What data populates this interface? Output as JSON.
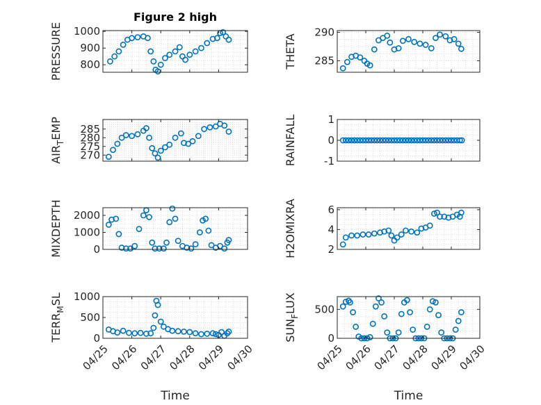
{
  "figure_title": "Figure 2 high",
  "style": {
    "marker_color": "#0072BD",
    "axis_color": "#262626",
    "grid_color": "#d9d9d9"
  },
  "x_axis": {
    "label": "Time",
    "range": [
      25.0,
      30.0
    ],
    "ticks": [
      {
        "v": 25,
        "label": "04/25"
      },
      {
        "v": 26,
        "label": "04/26"
      },
      {
        "v": 27,
        "label": "04/27"
      },
      {
        "v": 28,
        "label": "04/28"
      },
      {
        "v": 29,
        "label": "04/29"
      },
      {
        "v": 30,
        "label": "04/30"
      }
    ]
  },
  "chart_data": [
    {
      "id": "pressure",
      "type": "scatter",
      "column": "left",
      "row": 0,
      "title": "Figure 2 high",
      "ylabel": "PRESSURE",
      "ylim": [
        755,
        1005
      ],
      "grid": true,
      "yticks": [
        {
          "v": 800,
          "label": "800"
        },
        {
          "v": 900,
          "label": "900"
        },
        {
          "v": 1000,
          "label": "1000"
        }
      ],
      "x": [
        25.25,
        25.4,
        25.55,
        25.7,
        25.85,
        26.0,
        26.2,
        26.4,
        26.55,
        26.65,
        26.75,
        26.82,
        26.9,
        27.0,
        27.15,
        27.3,
        27.5,
        27.65,
        27.75,
        27.85,
        28.0,
        28.2,
        28.4,
        28.6,
        28.8,
        28.95,
        29.05,
        29.15,
        29.25,
        29.35
      ],
      "y": [
        820,
        850,
        880,
        920,
        950,
        960,
        965,
        970,
        960,
        880,
        820,
        770,
        760,
        800,
        840,
        860,
        880,
        905,
        850,
        830,
        860,
        880,
        900,
        930,
        955,
        960,
        990,
        995,
        970,
        950
      ]
    },
    {
      "id": "theta",
      "type": "scatter",
      "column": "right",
      "row": 0,
      "ylabel": "THETA",
      "ylim": [
        283.0,
        290.3
      ],
      "grid": true,
      "yticks": [
        {
          "v": 285,
          "label": "285"
        },
        {
          "v": 290,
          "label": "290"
        }
      ],
      "x": [
        25.2,
        25.35,
        25.5,
        25.65,
        25.8,
        25.95,
        26.05,
        26.15,
        26.3,
        26.45,
        26.6,
        26.75,
        26.85,
        27.0,
        27.15,
        27.3,
        27.5,
        27.7,
        27.9,
        28.1,
        28.3,
        28.45,
        28.6,
        28.8,
        28.95,
        29.1,
        29.25,
        29.35
      ],
      "y": [
        283.7,
        284.8,
        285.7,
        285.9,
        285.6,
        285.0,
        284.5,
        284.2,
        287.0,
        288.6,
        289.0,
        289.4,
        288.2,
        287.0,
        287.2,
        288.5,
        288.8,
        288.3,
        288.0,
        287.8,
        287.2,
        289.0,
        289.6,
        289.3,
        288.6,
        288.8,
        288.0,
        287.1
      ]
    },
    {
      "id": "air_temp",
      "type": "scatter",
      "column": "left",
      "row": 1,
      "ylabel": "AIR_TEMP",
      "ylim": [
        266.5,
        290.5
      ],
      "grid": true,
      "yticks": [
        {
          "v": 270,
          "label": "270"
        },
        {
          "v": 275,
          "label": "275"
        },
        {
          "v": 280,
          "label": "280"
        },
        {
          "v": 285,
          "label": "285"
        }
      ],
      "x": [
        25.2,
        25.35,
        25.5,
        25.65,
        25.8,
        26.0,
        26.2,
        26.4,
        26.5,
        26.6,
        26.7,
        26.8,
        26.9,
        27.0,
        27.15,
        27.3,
        27.5,
        27.7,
        27.8,
        27.95,
        28.1,
        28.3,
        28.5,
        28.7,
        28.9,
        29.05,
        29.2,
        29.35
      ],
      "y": [
        269.0,
        273.0,
        276.5,
        280.0,
        281.5,
        281.0,
        282.0,
        284.0,
        285.5,
        280.0,
        274.0,
        271.0,
        268.5,
        272.5,
        274.5,
        276.0,
        280.0,
        282.5,
        277.0,
        276.5,
        278.0,
        281.0,
        285.0,
        286.0,
        286.5,
        288.0,
        287.0,
        283.5
      ]
    },
    {
      "id": "rainfall",
      "type": "scatter",
      "column": "right",
      "row": 1,
      "ylabel": "RAINFALL",
      "ylim": [
        -1,
        1
      ],
      "grid": true,
      "yticks": [
        {
          "v": -1,
          "label": "-1"
        },
        {
          "v": 0,
          "label": "0"
        },
        {
          "v": 1,
          "label": "1"
        }
      ],
      "x": [
        25.2,
        25.3,
        25.4,
        25.5,
        25.6,
        25.7,
        25.8,
        25.9,
        26.0,
        26.1,
        26.2,
        26.3,
        26.4,
        26.5,
        26.6,
        26.7,
        26.8,
        26.9,
        27.0,
        27.1,
        27.2,
        27.3,
        27.4,
        27.5,
        27.6,
        27.7,
        27.8,
        27.9,
        28.0,
        28.1,
        28.2,
        28.3,
        28.4,
        28.5,
        28.6,
        28.7,
        28.8,
        28.9,
        29.0,
        29.1,
        29.2,
        29.3,
        29.37
      ],
      "y": [
        0,
        0,
        0,
        0,
        0,
        0,
        0,
        0,
        0,
        0,
        0,
        0,
        0,
        0,
        0,
        0,
        0,
        0,
        0,
        0,
        0,
        0,
        0,
        0,
        0,
        0,
        0,
        0,
        0,
        0,
        0,
        0,
        0,
        0,
        0,
        0,
        0,
        0,
        0,
        0,
        0,
        0,
        0
      ]
    },
    {
      "id": "mixdepth",
      "type": "scatter",
      "column": "left",
      "row": 2,
      "ylabel": "MIXDEPTH",
      "ylim": [
        0,
        2450
      ],
      "grid": true,
      "yticks": [
        {
          "v": 0,
          "label": "0"
        },
        {
          "v": 1000,
          "label": "1000"
        },
        {
          "v": 2000,
          "label": "2000"
        }
      ],
      "x": [
        25.2,
        25.3,
        25.45,
        25.55,
        25.65,
        25.8,
        25.95,
        26.1,
        26.25,
        26.4,
        26.5,
        26.6,
        26.7,
        26.8,
        26.95,
        27.1,
        27.2,
        27.3,
        27.4,
        27.5,
        27.6,
        27.75,
        27.9,
        28.05,
        28.2,
        28.35,
        28.45,
        28.55,
        28.65,
        28.75,
        28.9,
        29.05,
        29.2,
        29.3,
        29.35
      ],
      "y": [
        1450,
        1750,
        1800,
        900,
        100,
        50,
        50,
        200,
        1200,
        2000,
        2300,
        1900,
        400,
        50,
        50,
        50,
        400,
        1600,
        2400,
        1800,
        500,
        200,
        100,
        50,
        300,
        1000,
        1700,
        1800,
        1100,
        250,
        100,
        200,
        50,
        400,
        550
      ]
    },
    {
      "id": "h2omixra",
      "type": "scatter",
      "column": "right",
      "row": 2,
      "ylabel": "H2OMIXRA",
      "ylim": [
        2,
        6.2
      ],
      "grid": true,
      "yticks": [
        {
          "v": 2,
          "label": "2"
        },
        {
          "v": 4,
          "label": "4"
        },
        {
          "v": 6,
          "label": "6"
        }
      ],
      "x": [
        25.2,
        25.3,
        25.5,
        25.7,
        25.9,
        26.1,
        26.3,
        26.5,
        26.65,
        26.8,
        26.9,
        27.0,
        27.1,
        27.25,
        27.4,
        27.6,
        27.8,
        27.95,
        28.1,
        28.25,
        28.4,
        28.5,
        28.6,
        28.75,
        28.9,
        29.05,
        29.2,
        29.3,
        29.35
      ],
      "y": [
        2.5,
        3.2,
        3.4,
        3.4,
        3.5,
        3.5,
        3.6,
        3.7,
        3.8,
        3.9,
        3.4,
        2.9,
        3.2,
        3.5,
        3.9,
        3.8,
        3.7,
        4.1,
        4.2,
        4.4,
        5.6,
        5.7,
        5.3,
        5.3,
        5.2,
        5.3,
        5.5,
        5.3,
        5.7
      ]
    },
    {
      "id": "terr_msl",
      "type": "scatter",
      "column": "left",
      "row": 3,
      "ylabel": "TERR_MSL",
      "ylim": [
        0,
        1000
      ],
      "grid": true,
      "yticks": [
        {
          "v": 0,
          "label": "0"
        },
        {
          "v": 500,
          "label": "500"
        },
        {
          "v": 1000,
          "label": "1000"
        }
      ],
      "x": [
        25.2,
        25.35,
        25.5,
        25.7,
        25.9,
        26.1,
        26.3,
        26.5,
        26.65,
        26.75,
        26.8,
        26.85,
        26.9,
        27.0,
        27.1,
        27.25,
        27.4,
        27.6,
        27.8,
        28.0,
        28.2,
        28.4,
        28.6,
        28.8,
        28.9,
        29.0,
        29.1,
        29.2,
        29.3,
        29.35
      ],
      "y": [
        210,
        170,
        140,
        180,
        130,
        120,
        130,
        110,
        120,
        250,
        550,
        900,
        800,
        400,
        280,
        220,
        180,
        170,
        160,
        150,
        120,
        100,
        110,
        120,
        100,
        80,
        150,
        60,
        120,
        160
      ]
    },
    {
      "id": "sun_flux",
      "type": "scatter",
      "column": "right",
      "row": 3,
      "ylabel": "SUN_FLUX",
      "ylim": [
        0,
        720
      ],
      "grid": true,
      "yticks": [
        {
          "v": 0,
          "label": "0"
        },
        {
          "v": 500,
          "label": "500"
        }
      ],
      "x": [
        25.2,
        25.3,
        25.4,
        25.45,
        25.55,
        25.65,
        25.75,
        25.85,
        25.95,
        26.05,
        26.15,
        26.25,
        26.35,
        26.45,
        26.55,
        26.65,
        26.75,
        26.85,
        26.95,
        27.05,
        27.15,
        27.25,
        27.35,
        27.45,
        27.55,
        27.65,
        27.75,
        27.85,
        27.95,
        28.05,
        28.15,
        28.25,
        28.35,
        28.45,
        28.55,
        28.65,
        28.75,
        28.85,
        28.95,
        29.05,
        29.15,
        29.25,
        29.35
      ],
      "y": [
        550,
        630,
        650,
        620,
        450,
        200,
        30,
        0,
        0,
        0,
        20,
        250,
        550,
        690,
        620,
        380,
        100,
        0,
        0,
        0,
        100,
        420,
        620,
        660,
        450,
        150,
        0,
        0,
        0,
        0,
        200,
        500,
        640,
        620,
        400,
        100,
        0,
        0,
        0,
        0,
        150,
        300,
        450
      ]
    }
  ]
}
